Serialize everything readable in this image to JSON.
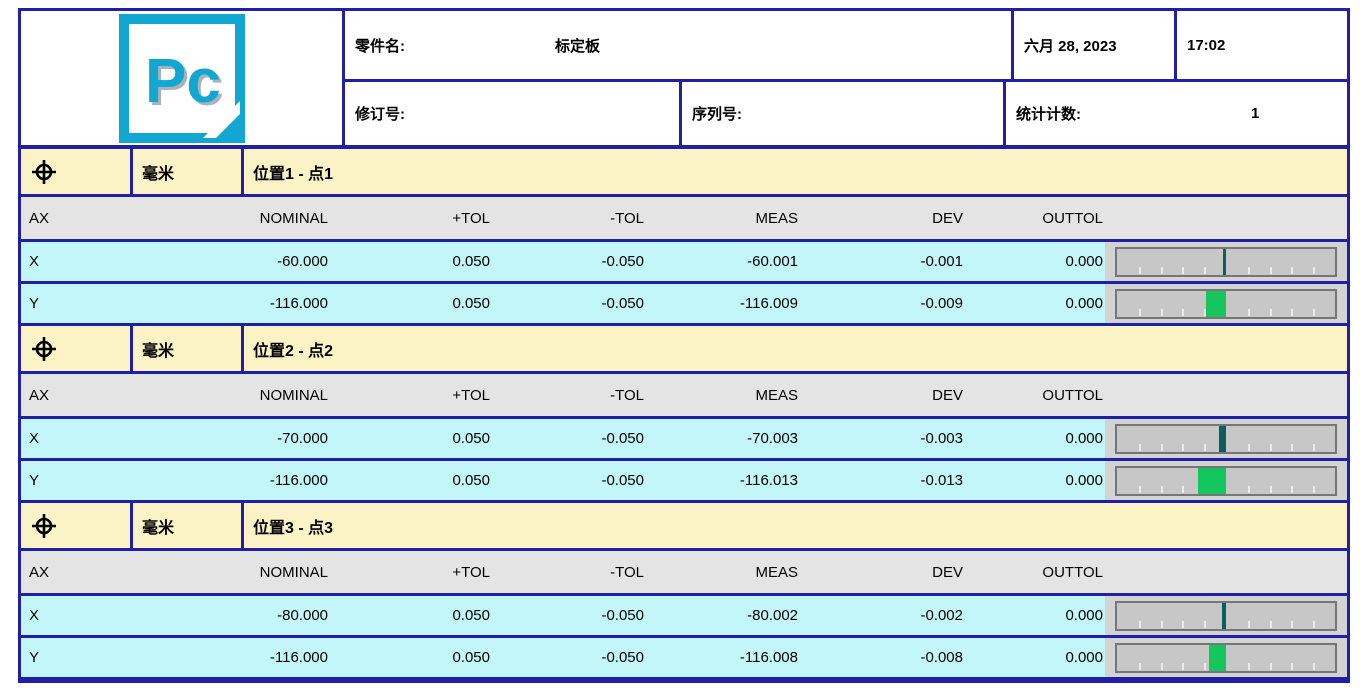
{
  "header": {
    "logo_text": "Pc",
    "part_name_label": "零件名:",
    "part_name_value": "标定板",
    "date": "六月 28, 2023",
    "time": "17:02",
    "revision_label": "修订号:",
    "revision_value": "",
    "serial_label": "序列号:",
    "serial_value": "",
    "stats_label": "统计计数:",
    "stats_value": "1"
  },
  "columns": [
    "AX",
    "NOMINAL",
    "+TOL",
    "-TOL",
    "MEAS",
    "DEV",
    "OUTTOL"
  ],
  "colors": {
    "border_navy": "#2020a4",
    "band_yellow": "#fbf3c6",
    "row_cyan": "#c2f6f8",
    "colhdr_gray": "#e4e4e4",
    "bar_cell_gray": "#d3d3d3",
    "bar_bg_gray": "#c7c7c7",
    "dev_green": "#15c55e",
    "dev_teal": "#0b5e5e",
    "logo_cyan": "#12a7d0"
  },
  "sections": [
    {
      "icon": "position-icon",
      "unit": "毫米",
      "title": "位置1 - 点1",
      "rows": [
        {
          "ax": "X",
          "nominal": "-60.000",
          "ptol": "0.050",
          "ntol": "-0.050",
          "meas": "-60.001",
          "dev": "-0.001",
          "outtol": "0.000",
          "bar": {
            "dev": -0.001,
            "range": 0.05,
            "color": "#0b5e5e"
          }
        },
        {
          "ax": "Y",
          "nominal": "-116.000",
          "ptol": "0.050",
          "ntol": "-0.050",
          "meas": "-116.009",
          "dev": "-0.009",
          "outtol": "0.000",
          "bar": {
            "dev": -0.009,
            "range": 0.05,
            "color": "#15c55e"
          }
        }
      ]
    },
    {
      "icon": "position-icon",
      "unit": "毫米",
      "title": "位置2 - 点2",
      "rows": [
        {
          "ax": "X",
          "nominal": "-70.000",
          "ptol": "0.050",
          "ntol": "-0.050",
          "meas": "-70.003",
          "dev": "-0.003",
          "outtol": "0.000",
          "bar": {
            "dev": -0.003,
            "range": 0.05,
            "color": "#0b5e5e"
          }
        },
        {
          "ax": "Y",
          "nominal": "-116.000",
          "ptol": "0.050",
          "ntol": "-0.050",
          "meas": "-116.013",
          "dev": "-0.013",
          "outtol": "0.000",
          "bar": {
            "dev": -0.013,
            "range": 0.05,
            "color": "#15c55e"
          }
        }
      ]
    },
    {
      "icon": "position-icon",
      "unit": "毫米",
      "title": "位置3 - 点3",
      "rows": [
        {
          "ax": "X",
          "nominal": "-80.000",
          "ptol": "0.050",
          "ntol": "-0.050",
          "meas": "-80.002",
          "dev": "-0.002",
          "outtol": "0.000",
          "bar": {
            "dev": -0.002,
            "range": 0.05,
            "color": "#0b5e5e"
          }
        },
        {
          "ax": "Y",
          "nominal": "-116.000",
          "ptol": "0.050",
          "ntol": "-0.050",
          "meas": "-116.008",
          "dev": "-0.008",
          "outtol": "0.000",
          "bar": {
            "dev": -0.008,
            "range": 0.05,
            "color": "#15c55e"
          }
        }
      ]
    }
  ]
}
